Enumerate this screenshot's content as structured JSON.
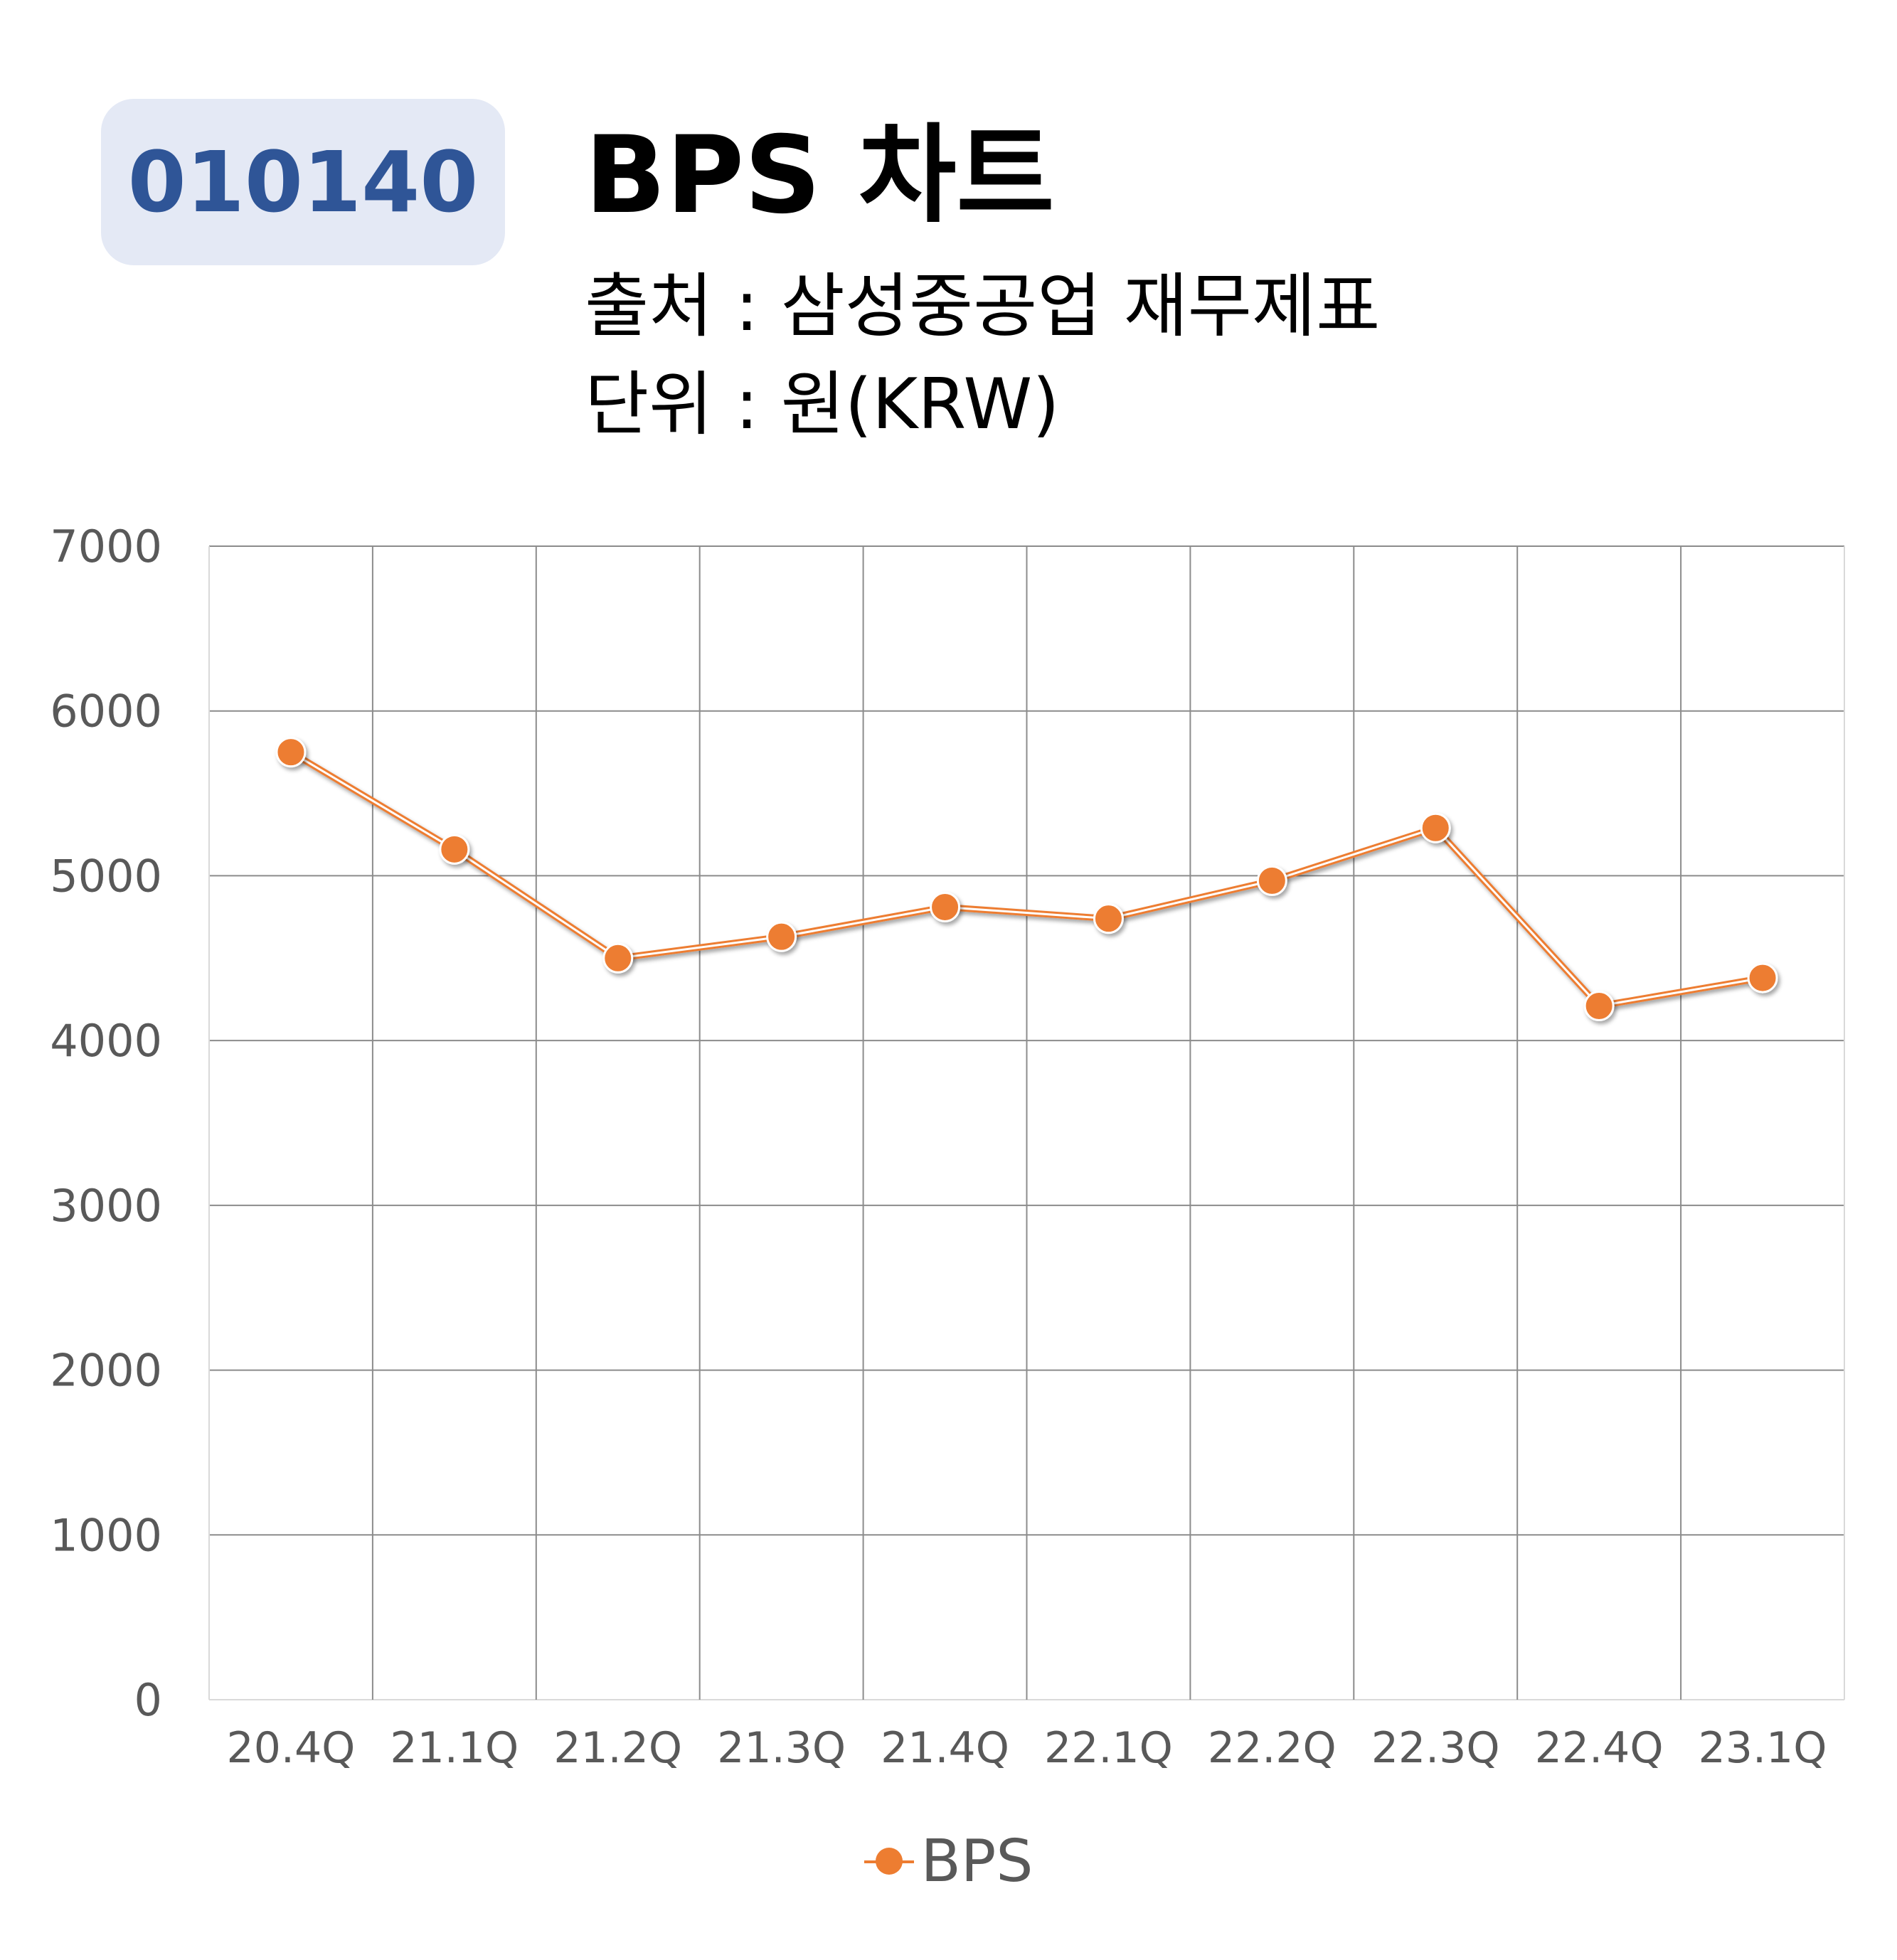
{
  "header": {
    "code": "010140",
    "title": "BPS 차트",
    "source": "출처 : 삼성중공업 재무제표",
    "unit": "단위 : 원(KRW)"
  },
  "chart_data": {
    "type": "line",
    "categories": [
      "20.4Q",
      "21.1Q",
      "21.2Q",
      "21.3Q",
      "21.4Q",
      "22.1Q",
      "22.2Q",
      "22.3Q",
      "22.4Q",
      "23.1Q"
    ],
    "series": [
      {
        "name": "BPS",
        "values": [
          5750,
          5160,
          4500,
          4630,
          4810,
          4740,
          4970,
          5290,
          4210,
          4380
        ],
        "color": "#ed7d31"
      }
    ],
    "ylim": [
      0,
      7000
    ],
    "yticks": [
      0,
      1000,
      2000,
      3000,
      4000,
      5000,
      6000,
      7000
    ],
    "grid": true,
    "legend_position": "bottom"
  }
}
